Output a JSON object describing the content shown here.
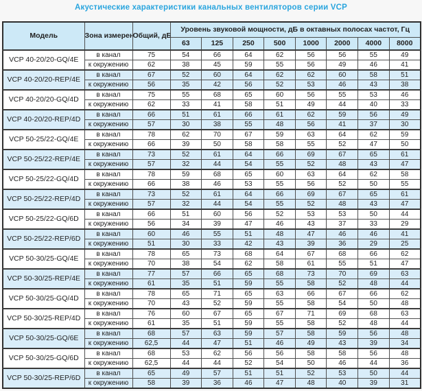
{
  "title": "Акустические характеристики канальных вентиляторов  серии VCP",
  "colors": {
    "title_blue": "#2aa5de",
    "header_bg": "#cde9f7",
    "highlight_row_bg": "#d9edf9",
    "border_dark": "#2e2e2e"
  },
  "table": {
    "headers": {
      "model": "Модель",
      "zone": "Зона измерения",
      "total": "Общий, дБА",
      "group": "Уровень звуковой мощности, дБ в октавных полосах частот, Гц",
      "frequencies": [
        "63",
        "125",
        "250",
        "500",
        "1000",
        "2000",
        "4000",
        "8000"
      ]
    },
    "zone_labels": {
      "duct": "в канал",
      "ambient": "к окружению"
    },
    "rows": [
      {
        "model": "VCP 40-20/20-GQ/4E",
        "highlight": false,
        "duct": {
          "total": "75",
          "bands": [
            54,
            66,
            64,
            62,
            56,
            56,
            55,
            49
          ]
        },
        "ambient": {
          "total": "62",
          "bands": [
            38,
            45,
            59,
            55,
            56,
            49,
            46,
            41
          ]
        }
      },
      {
        "model": "VCP 40-20/20-REP/4E",
        "highlight": true,
        "duct": {
          "total": "67",
          "bands": [
            52,
            60,
            64,
            62,
            62,
            60,
            58,
            51
          ]
        },
        "ambient": {
          "total": "56",
          "bands": [
            35,
            42,
            56,
            52,
            53,
            46,
            43,
            38
          ]
        }
      },
      {
        "model": "VCP 40-20/20-GQ/4D",
        "highlight": false,
        "duct": {
          "total": "75",
          "bands": [
            55,
            68,
            65,
            60,
            56,
            55,
            53,
            46
          ]
        },
        "ambient": {
          "total": "62",
          "bands": [
            33,
            41,
            58,
            51,
            49,
            44,
            40,
            33
          ]
        }
      },
      {
        "model": "VCP 40-20/20-REP/4D",
        "highlight": true,
        "duct": {
          "total": "66",
          "bands": [
            51,
            61,
            66,
            61,
            62,
            59,
            56,
            49
          ]
        },
        "ambient": {
          "total": "57",
          "bands": [
            30,
            38,
            55,
            48,
            56,
            41,
            37,
            30
          ]
        }
      },
      {
        "model": "VCP 50-25/22-GQ/4E",
        "highlight": false,
        "duct": {
          "total": "78",
          "bands": [
            62,
            70,
            67,
            59,
            63,
            64,
            62,
            59
          ]
        },
        "ambient": {
          "total": "66",
          "bands": [
            39,
            50,
            58,
            58,
            55,
            52,
            47,
            50
          ]
        }
      },
      {
        "model": "VCP 50-25/22-REP/4E",
        "highlight": true,
        "duct": {
          "total": "73",
          "bands": [
            52,
            61,
            64,
            66,
            69,
            67,
            65,
            61
          ]
        },
        "ambient": {
          "total": "57",
          "bands": [
            32,
            44,
            54,
            55,
            52,
            48,
            43,
            47
          ]
        }
      },
      {
        "model": "VCP 50-25/22-GQ/4D",
        "highlight": false,
        "duct": {
          "total": "78",
          "bands": [
            59,
            68,
            65,
            60,
            63,
            64,
            62,
            58
          ]
        },
        "ambient": {
          "total": "66",
          "bands": [
            38,
            46,
            53,
            55,
            56,
            52,
            50,
            55
          ]
        }
      },
      {
        "model": "VCP 50-25/22-REP/4D",
        "highlight": true,
        "duct": {
          "total": "73",
          "bands": [
            52,
            61,
            64,
            66,
            69,
            67,
            65,
            61
          ]
        },
        "ambient": {
          "total": "57",
          "bands": [
            32,
            44,
            54,
            55,
            52,
            48,
            43,
            47
          ]
        }
      },
      {
        "model": "VCP 50-25/22-GQ/6D",
        "highlight": false,
        "duct": {
          "total": "66",
          "bands": [
            51,
            60,
            56,
            52,
            53,
            53,
            50,
            44
          ]
        },
        "ambient": {
          "total": "56",
          "bands": [
            34,
            39,
            47,
            46,
            43,
            37,
            33,
            29
          ]
        }
      },
      {
        "model": "VCP 50-25/22-REP/6D",
        "highlight": true,
        "duct": {
          "total": "60",
          "bands": [
            46,
            55,
            51,
            48,
            47,
            46,
            46,
            41
          ]
        },
        "ambient": {
          "total": "51",
          "bands": [
            30,
            33,
            42,
            43,
            39,
            36,
            29,
            25
          ]
        }
      },
      {
        "model": "VCP 50-30/25-GQ/4E",
        "highlight": false,
        "duct": {
          "total": "78",
          "bands": [
            65,
            73,
            68,
            64,
            67,
            68,
            66,
            62
          ]
        },
        "ambient": {
          "total": "70",
          "bands": [
            38,
            54,
            62,
            58,
            61,
            55,
            51,
            47
          ]
        }
      },
      {
        "model": "VCP 50-30/25-REP/4E",
        "highlight": true,
        "duct": {
          "total": "77",
          "bands": [
            57,
            66,
            65,
            68,
            73,
            70,
            69,
            63
          ]
        },
        "ambient": {
          "total": "61",
          "bands": [
            35,
            51,
            59,
            55,
            58,
            52,
            48,
            44
          ]
        }
      },
      {
        "model": "VCP 50-30/25-GQ/4D",
        "highlight": false,
        "duct": {
          "total": "78",
          "bands": [
            65,
            71,
            65,
            63,
            66,
            67,
            66,
            62
          ]
        },
        "ambient": {
          "total": "70",
          "bands": [
            43,
            52,
            59,
            55,
            58,
            54,
            50,
            48
          ]
        }
      },
      {
        "model": "VCP 50-30/25-REP/4D",
        "highlight": false,
        "duct": {
          "total": "76",
          "bands": [
            60,
            67,
            65,
            67,
            71,
            69,
            68,
            63
          ]
        },
        "ambient": {
          "total": "61",
          "bands": [
            35,
            51,
            59,
            55,
            58,
            52,
            48,
            44
          ]
        }
      },
      {
        "model": "VCP 50-30/25-GQ/6E",
        "highlight": true,
        "duct": {
          "total": "68",
          "bands": [
            57,
            63,
            59,
            57,
            58,
            59,
            56,
            48
          ]
        },
        "ambient": {
          "total": "62,5",
          "bands": [
            44,
            47,
            51,
            46,
            49,
            43,
            39,
            34
          ]
        }
      },
      {
        "model": "VCP 50-30/25-GQ/6D",
        "highlight": false,
        "duct": {
          "total": "68",
          "bands": [
            53,
            62,
            56,
            56,
            58,
            58,
            56,
            48
          ]
        },
        "ambient": {
          "total": "62,5",
          "bands": [
            44,
            44,
            52,
            54,
            50,
            46,
            44,
            36
          ]
        }
      },
      {
        "model": "VCP 50-30/25-REP/6D",
        "highlight": true,
        "duct": {
          "total": "65",
          "bands": [
            49,
            57,
            51,
            51,
            52,
            53,
            50,
            44
          ]
        },
        "ambient": {
          "total": "58",
          "bands": [
            39,
            36,
            46,
            47,
            48,
            40,
            39,
            31
          ]
        }
      }
    ]
  }
}
